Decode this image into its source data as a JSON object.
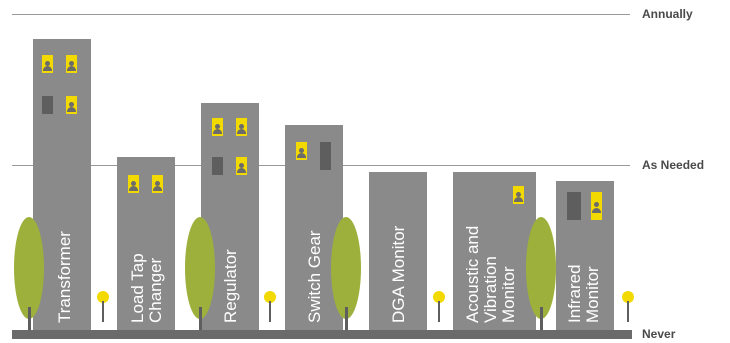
{
  "levels": {
    "annually": "Annually",
    "as_needed": "As Needed",
    "never": "Never"
  },
  "buildings": [
    {
      "name": "Transformer",
      "lines": "Transformer"
    },
    {
      "name": "Load Tap Changer",
      "lines": "Load Tap\nChanger"
    },
    {
      "name": "Regulator",
      "lines": "Regulator"
    },
    {
      "name": "Switch Gear",
      "lines": "Switch Gear"
    },
    {
      "name": "DGA Monitor",
      "lines": "DGA Monitor"
    },
    {
      "name": "Acoustic and Vibration Monitor",
      "lines": "Acoustic and\nVibration\nMonitor"
    },
    {
      "name": "Infrared Monitor",
      "lines": "Infrared\nMonitor"
    }
  ],
  "colors": {
    "building": "#8a8a8a",
    "window_lit": "#f2d900",
    "window_dark": "#5e5e5e",
    "tree": "#9eb03c",
    "lamp": "#f2d900",
    "ground": "#6b6b6b"
  }
}
